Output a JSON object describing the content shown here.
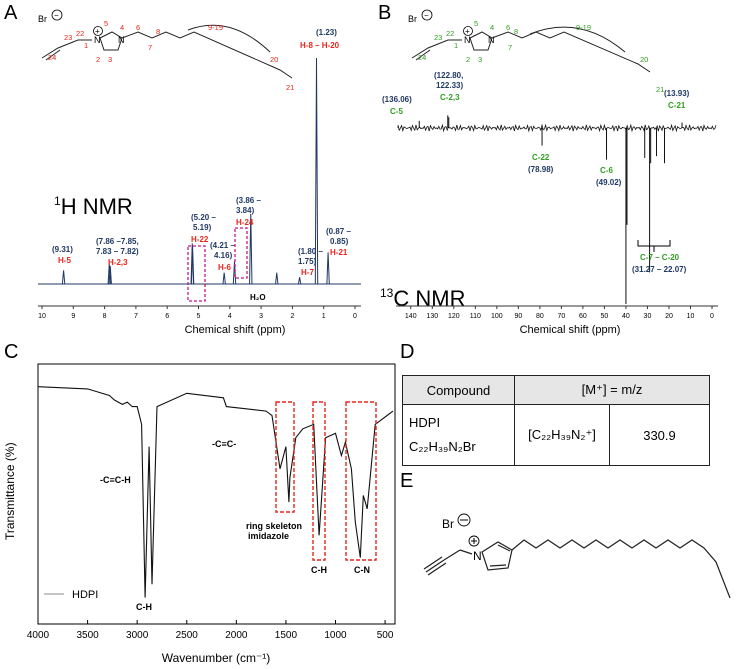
{
  "panels": {
    "A": "A",
    "B": "B",
    "C": "C",
    "D": "D",
    "E": "E"
  },
  "colors": {
    "red": "#e8251c",
    "navy": "#1f3864",
    "green": "#2f9e1f",
    "magenta": "#c2188b",
    "line": "#111111"
  },
  "nmr_h": {
    "title_sup": "1",
    "title": "H NMR",
    "xlabel": "Chemical shift (ppm)",
    "xticks": [
      "10",
      "9",
      "8",
      "7",
      "6",
      "5",
      "4",
      "3",
      "2",
      "1",
      "0"
    ],
    "labels": [
      {
        "shift": "(9.31)",
        "assign": "H-5"
      },
      {
        "shift": "(7.86 –7.85,",
        "shift2": "7.83 – 7.82)",
        "assign": "H-2,3"
      },
      {
        "shift": "(5.20 –",
        "shift2": "5.19)",
        "assign": "H-22"
      },
      {
        "shift": "(4.21 –",
        "shift2": "4.16)",
        "assign": "H-6"
      },
      {
        "shift": "(3.86 –",
        "shift2": "3.84)",
        "assign": "H-24"
      },
      {
        "shift": "(1.80 –",
        "shift2": "1.75)",
        "assign": "H-7"
      },
      {
        "shift": "(1.23)",
        "assign": "H-8 – H-20"
      },
      {
        "shift": "(0.87 –",
        "shift2": "0.85)",
        "assign": "H-21"
      }
    ],
    "water": "H₂O",
    "struct_labels": [
      "Br",
      "23",
      "22",
      "5",
      "4",
      "6",
      "8",
      "9-19",
      "20",
      "21",
      "24",
      "1",
      "N",
      "N",
      "2",
      "3",
      "7",
      "+"
    ]
  },
  "nmr_c": {
    "title_sup": "13",
    "title": "C NMR",
    "xlabel": "Chemical shift (ppm)",
    "xticks": [
      "140",
      "130",
      "120",
      "110",
      "100",
      "90",
      "80",
      "70",
      "60",
      "50",
      "40",
      "30",
      "20",
      "10",
      "0"
    ],
    "labels": [
      {
        "shift": "(136.06)",
        "assign": "C-5"
      },
      {
        "shift": "(122.80,",
        "shift2": "122.33)",
        "assign": "C-2,3"
      },
      {
        "shift": "(13.93)",
        "assign": "C-21"
      },
      {
        "shift": "(78.98)",
        "assign": "C-22"
      },
      {
        "shift": "(49.02)",
        "assign": "C-6"
      },
      {
        "shift": "(31.27 – 22.07)",
        "assign": "C-7 – C-20"
      }
    ],
    "struct_labels": [
      "Br",
      "23",
      "22",
      "5",
      "4",
      "6",
      "8",
      "9-19",
      "20",
      "21",
      "24",
      "1",
      "N",
      "N",
      "2",
      "3",
      "7",
      "+"
    ]
  },
  "ir": {
    "ylabel": "Transmittance (%)",
    "xlabel": "Wavenumber (cm⁻¹)",
    "xticks": [
      "4000",
      "3500",
      "3000",
      "2500",
      "2000",
      "1500",
      "1000",
      "500"
    ],
    "legend": "HDPI",
    "annotations": [
      "-C≡C-H",
      "C-H",
      "-C≡C-",
      "ring skeleton",
      "imidazole",
      "C-H",
      "C-N"
    ]
  },
  "table": {
    "h1": "Compound",
    "h2": "[M⁺] = m/z",
    "compound": "HDPI",
    "formula": "C₂₂H₃₉N₂Br",
    "ion": "[C₂₂H₃₉N₂⁺]",
    "mz": "330.9"
  },
  "struct_e": {
    "br": "Br",
    "n": "N"
  },
  "chart_data": [
    {
      "type": "line",
      "title": "1H NMR",
      "xlabel": "Chemical shift (ppm)",
      "ylabel": "",
      "xlim": [
        10,
        0
      ],
      "peaks": [
        {
          "x": 9.31,
          "h": 0.06
        },
        {
          "x": 7.85,
          "h": 0.09
        },
        {
          "x": 7.82,
          "h": 0.08
        },
        {
          "x": 5.2,
          "h": 0.18
        },
        {
          "x": 5.19,
          "h": 0.17
        },
        {
          "x": 4.18,
          "h": 0.05
        },
        {
          "x": 3.85,
          "h": 0.1
        },
        {
          "x": 3.33,
          "h": 0.31
        },
        {
          "x": 2.5,
          "h": 0.05
        },
        {
          "x": 1.77,
          "h": 0.03
        },
        {
          "x": 1.23,
          "h": 1.0
        },
        {
          "x": 0.86,
          "h": 0.14
        }
      ]
    },
    {
      "type": "line",
      "title": "13C NMR",
      "xlabel": "Chemical shift (ppm)",
      "ylabel": "",
      "xlim": [
        145,
        0
      ],
      "peaks": [
        {
          "x": 136.06,
          "h": 0.08
        },
        {
          "x": 122.8,
          "h": 0.14
        },
        {
          "x": 122.33,
          "h": 0.12
        },
        {
          "x": 78.98,
          "h": -0.1
        },
        {
          "x": 49.02,
          "h": -0.18
        },
        {
          "x": 40.0,
          "h": -1.0
        },
        {
          "x": 39.5,
          "h": -0.55
        },
        {
          "x": 31.27,
          "h": -0.17
        },
        {
          "x": 29.0,
          "h": -0.82
        },
        {
          "x": 28.5,
          "h": -0.2
        },
        {
          "x": 25.8,
          "h": -0.16
        },
        {
          "x": 22.07,
          "h": -0.2
        },
        {
          "x": 13.93,
          "h": 0.06
        }
      ]
    },
    {
      "type": "line",
      "title": "",
      "xlabel": "Wavenumber (cm⁻¹)",
      "ylabel": "Transmittance (%)",
      "xlim": [
        4000,
        400
      ],
      "series": [
        {
          "name": "HDPI",
          "x": [
            4000,
            3500,
            3280,
            3230,
            3150,
            3100,
            3050,
            3000,
            2955,
            2920,
            2880,
            2850,
            2800,
            2500,
            2130,
            2100,
            1700,
            1640,
            1560,
            1500,
            1470,
            1460,
            1400,
            1330,
            1220,
            1165,
            1100,
            1000,
            940,
            900,
            840,
            800,
            750,
            720,
            680,
            600,
            480,
            420
          ],
          "y": [
            97,
            96,
            93,
            91,
            89,
            90,
            88,
            88,
            80,
            2,
            70,
            8,
            88,
            94,
            92,
            88,
            86,
            84,
            60,
            70,
            45,
            56,
            74,
            78,
            80,
            30,
            74,
            76,
            66,
            72,
            60,
            36,
            20,
            48,
            42,
            80,
            84,
            86
          ]
        }
      ]
    }
  ]
}
